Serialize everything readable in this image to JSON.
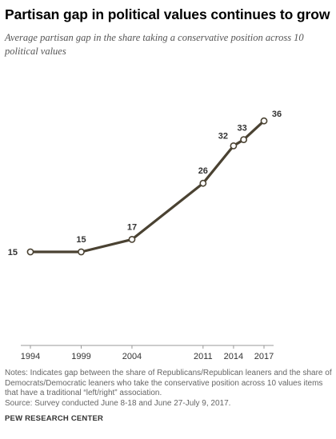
{
  "header": {
    "title": "Partisan gap in political values continues to grow",
    "subtitle": "Average partisan gap in the share taking a conservative position across 10 political values"
  },
  "chart_data": {
    "type": "line",
    "title": "Partisan gap in political values continues to grow",
    "subtitle": "Average partisan gap in the share taking a conservative position across 10 political values",
    "xlabel": "",
    "ylabel": "",
    "x": [
      1994,
      1999,
      2004,
      2011,
      2014,
      2015,
      2017
    ],
    "x_tick_labels": [
      "1994",
      "1999",
      "2004",
      "2011",
      "2014",
      "2017"
    ],
    "series": [
      {
        "values": [
          15,
          15,
          17,
          26,
          32,
          33,
          36
        ],
        "data_labels": [
          "15",
          "15",
          "17",
          "26",
          "32",
          "33",
          "36"
        ],
        "color": "#4a4232"
      }
    ],
    "xlim": [
      1994,
      2017
    ],
    "ylim": [
      0,
      40
    ],
    "grid": false,
    "legend": "none",
    "axis_color": "#999999"
  },
  "footer": {
    "notes": "Notes: Indicates gap between the share of Republicans/Republican leaners and the share of Democrats/Democratic leaners who take the conservative position across 10 values items that have a traditional “left/right” association.",
    "survey": "Source: Survey conducted June 8-18 and June 27-July 9, 2017.",
    "source_org": "PEW RESEARCH CENTER"
  }
}
